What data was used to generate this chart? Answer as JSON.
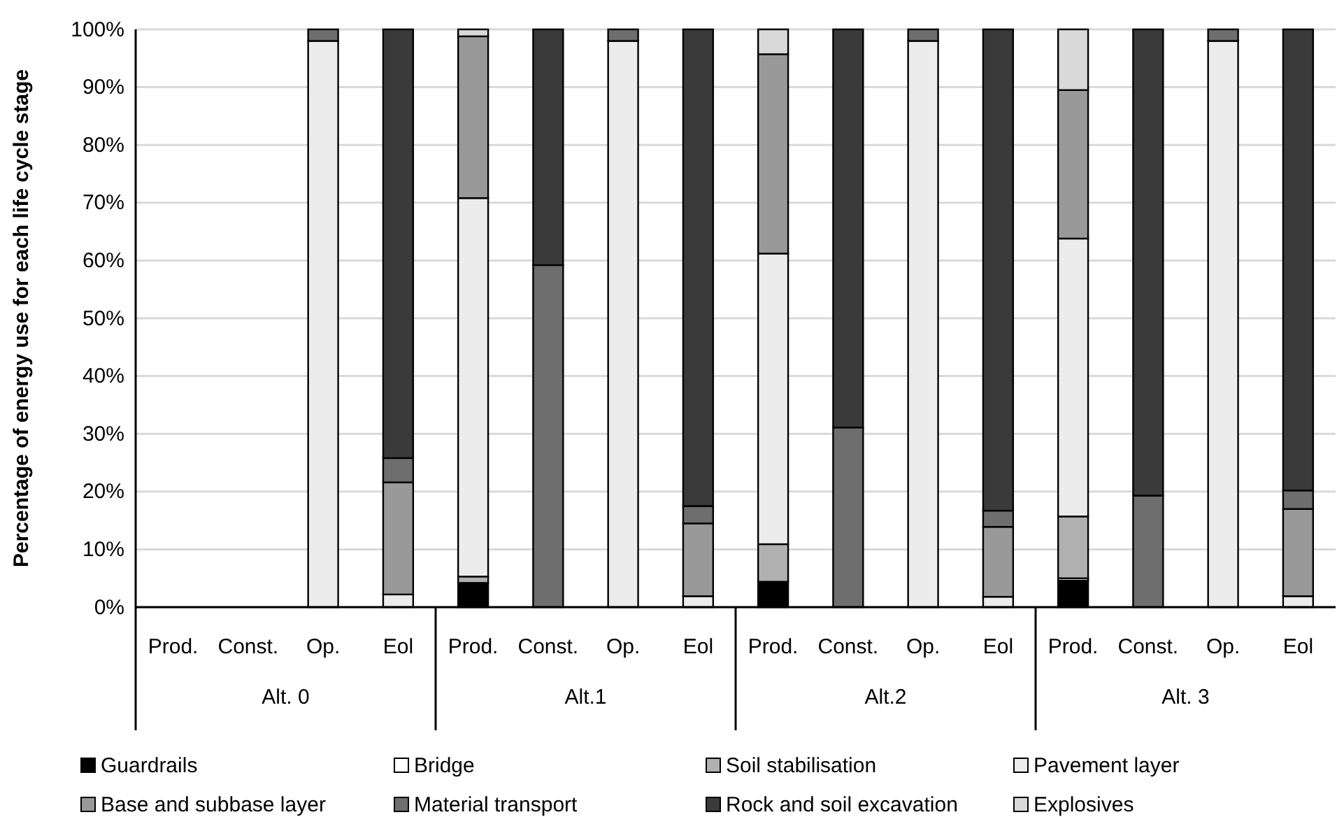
{
  "chart_data": {
    "type": "bar",
    "stacked": true,
    "ylabel": "Percentage of energy use for each life cycle stage",
    "categories": [
      "Prod.",
      "Const.",
      "Op.",
      "Eol",
      "Prod.",
      "Const.",
      "Op.",
      "Eol",
      "Prod.",
      "Const.",
      "Op.",
      "Eol",
      "Prod.",
      "Const.",
      "Op.",
      "Eol"
    ],
    "annotations": [
      "Alt. 0",
      "Alt.1",
      "Alt.2",
      "Alt. 3"
    ],
    "ylim": [
      0,
      100
    ],
    "yticks": [
      {
        "value": 0,
        "label": "0%"
      },
      {
        "value": 10,
        "label": "10%"
      },
      {
        "value": 20,
        "label": "20%"
      },
      {
        "value": 30,
        "label": "30%"
      },
      {
        "value": 40,
        "label": "40%"
      },
      {
        "value": 50,
        "label": "50%"
      },
      {
        "value": 60,
        "label": "60%"
      },
      {
        "value": 70,
        "label": "70%"
      },
      {
        "value": 80,
        "label": "80%"
      },
      {
        "value": 90,
        "label": "90%"
      },
      {
        "value": 100,
        "label": "100%"
      }
    ],
    "grid": "y",
    "legend": "bottom",
    "series": [
      {
        "name": "Guardrails",
        "color": "#000000",
        "values": [
          null,
          null,
          0,
          0,
          4.2,
          0,
          0,
          0,
          4.4,
          0,
          0,
          0,
          4.6,
          0,
          0,
          0
        ]
      },
      {
        "name": "Bridge",
        "color": "#ffffff",
        "values": [
          null,
          null,
          0,
          0,
          0,
          0,
          0,
          0,
          0,
          0,
          0,
          0,
          0.4,
          0,
          0,
          0
        ]
      },
      {
        "name": "Soil stabilisation",
        "color": "#b0b0b0",
        "values": [
          null,
          null,
          0,
          0,
          1.1,
          0,
          0,
          0,
          6.5,
          0,
          0,
          0,
          10.7,
          0,
          0,
          0
        ]
      },
      {
        "name": "Pavement layer",
        "color": "#ececec",
        "values": [
          null,
          null,
          98,
          2.2,
          65.5,
          0,
          98,
          1.9,
          50.3,
          0,
          98,
          1.8,
          48.1,
          0,
          98,
          1.9
        ]
      },
      {
        "name": "Base and subbase layer",
        "color": "#999999",
        "values": [
          null,
          null,
          0,
          19.4,
          28,
          0,
          0,
          12.6,
          34.5,
          0,
          0,
          12.1,
          25.7,
          0,
          0,
          15.1
        ]
      },
      {
        "name": "Material transport",
        "color": "#6e6e6e",
        "values": [
          null,
          null,
          2,
          4.2,
          0,
          59.2,
          2,
          3,
          0,
          31.1,
          2,
          2.8,
          0,
          19.3,
          2,
          3.2
        ]
      },
      {
        "name": "Rock and soil excavation",
        "color": "#3a3a3a",
        "values": [
          null,
          null,
          0,
          74.2,
          0,
          40.8,
          0,
          82.5,
          0,
          68.9,
          0,
          83.3,
          0,
          80.7,
          0,
          79.8
        ]
      },
      {
        "name": "Explosives",
        "color": "#d9d9d9",
        "values": [
          null,
          null,
          0,
          0,
          1.2,
          0,
          0,
          0,
          4.3,
          0,
          0,
          0,
          10.5,
          0,
          0,
          0
        ]
      }
    ]
  }
}
